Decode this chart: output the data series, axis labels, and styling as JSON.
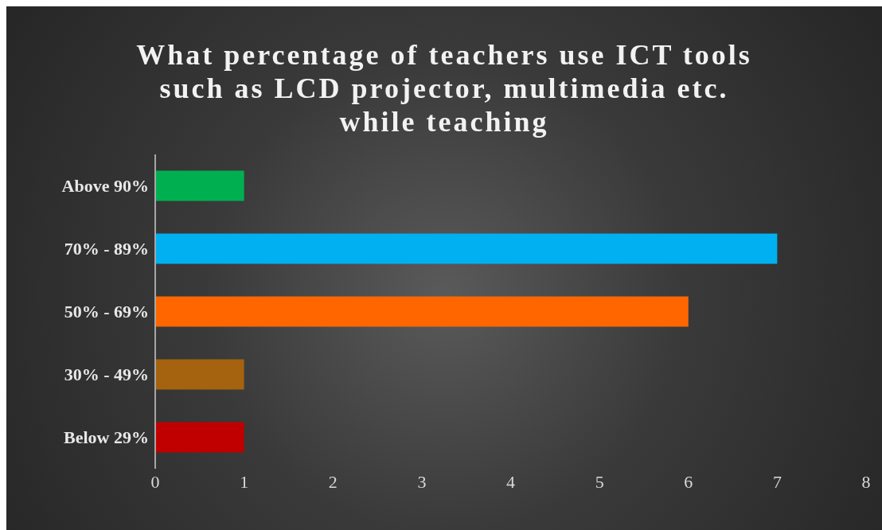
{
  "chart_data": {
    "type": "bar",
    "orientation": "horizontal",
    "title": "What percentage of teachers use ICT tools such as LCD projector, multimedia etc. while teaching",
    "categories": [
      "Above 90%",
      "70% - 89%",
      "50% - 69%",
      "30% - 49%",
      "Below 29%"
    ],
    "values": [
      1,
      7,
      6,
      1,
      1
    ],
    "colors": [
      "#00b050",
      "#00b0f0",
      "#ff6600",
      "#a5620f",
      "#c00000"
    ],
    "xlim": [
      0,
      8
    ],
    "xticks": [
      0,
      1,
      2,
      3,
      4,
      5,
      6,
      7,
      8
    ],
    "grid": false,
    "legend": false
  }
}
